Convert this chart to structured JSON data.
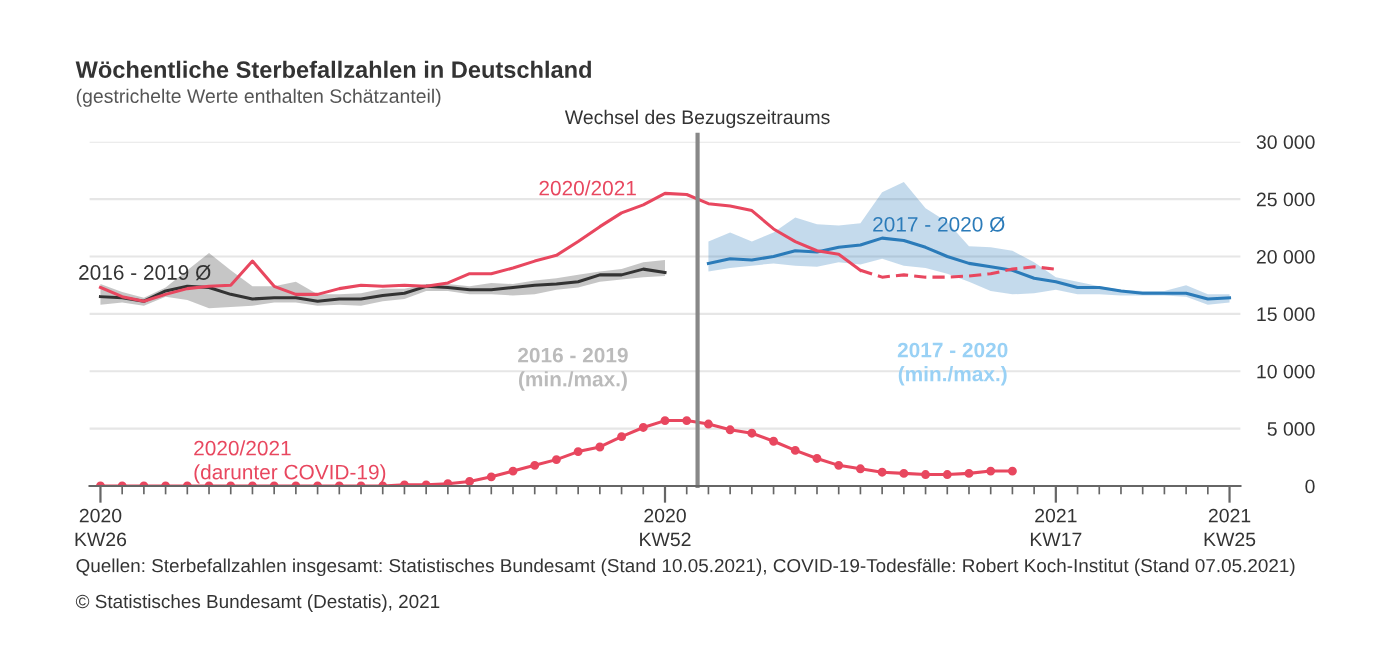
{
  "chart_data": {
    "type": "line",
    "title": "Wöchentliche Sterbefallzahlen in Deutschland",
    "subtitle": "(gestrichelte Werte enthalten Schätzanteil)",
    "categories": [
      "2020\nKW26",
      null,
      null,
      null,
      null,
      null,
      null,
      null,
      null,
      null,
      null,
      null,
      null,
      null,
      null,
      null,
      null,
      null,
      null,
      null,
      null,
      null,
      null,
      null,
      null,
      null,
      "2020\nKW52",
      null,
      null,
      null,
      null,
      null,
      null,
      null,
      null,
      null,
      null,
      null,
      null,
      null,
      null,
      null,
      null,
      null,
      "2021\nKW17",
      null,
      null,
      null,
      null,
      null,
      null,
      null,
      "2021\nKW25"
    ],
    "ylim": [
      0,
      30000
    ],
    "yticks": [
      {
        "value": 0,
        "label": "0"
      },
      {
        "value": 5000,
        "label": "5 000"
      },
      {
        "value": 10000,
        "label": "10 000"
      },
      {
        "value": 15000,
        "label": "15 000"
      },
      {
        "value": 20000,
        "label": "20 000"
      },
      {
        "value": 25000,
        "label": "25 000"
      },
      {
        "value": 30000,
        "label": "30 000"
      }
    ],
    "grid": "y",
    "series": [
      {
        "name": "2016 - 2019 Ø",
        "color": "#333333",
        "values": [
          16500,
          16400,
          16100,
          17000,
          17400,
          17300,
          16700,
          16300,
          16400,
          16400,
          16100,
          16300,
          16300,
          16600,
          16800,
          17400,
          17300,
          17100,
          17100,
          17300,
          17500,
          17600,
          17800,
          18400,
          18400,
          18900,
          18600,
          null,
          null,
          null,
          null,
          null,
          null,
          null,
          null,
          null,
          null,
          null,
          null,
          null,
          null,
          null,
          null,
          null,
          null,
          null,
          null,
          null,
          null,
          null,
          null,
          null,
          null
        ],
        "lower": [
          15800,
          16000,
          15700,
          16500,
          16200,
          15500,
          15600,
          15700,
          16000,
          16000,
          15700,
          15800,
          15700,
          16100,
          16300,
          17000,
          17000,
          16700,
          16700,
          16600,
          16700,
          17100,
          17300,
          17800,
          18000,
          18200,
          18300,
          null,
          null,
          null,
          null,
          null,
          null,
          null,
          null,
          null,
          null,
          null,
          null,
          null,
          null,
          null,
          null,
          null,
          null,
          null,
          null,
          null,
          null,
          null,
          null,
          null,
          null
        ],
        "upper": [
          17600,
          16900,
          16400,
          17300,
          18800,
          20300,
          18800,
          17400,
          17400,
          17800,
          16700,
          16700,
          16800,
          17200,
          17200,
          17600,
          17600,
          17400,
          17700,
          17600,
          17900,
          18100,
          18400,
          18700,
          18900,
          19500,
          19700,
          null,
          null,
          null,
          null,
          null,
          null,
          null,
          null,
          null,
          null,
          null,
          null,
          null,
          null,
          null,
          null,
          null,
          null,
          null,
          null,
          null,
          null,
          null,
          null,
          null,
          null
        ]
      },
      {
        "name": "2017 - 2020 Ø",
        "color": "#2b7bb9",
        "values": [
          null,
          null,
          null,
          null,
          null,
          null,
          null,
          null,
          null,
          null,
          null,
          null,
          null,
          null,
          null,
          null,
          null,
          null,
          null,
          null,
          null,
          null,
          null,
          null,
          null,
          null,
          null,
          null,
          19400,
          19800,
          19700,
          20000,
          20500,
          20400,
          20800,
          21000,
          21600,
          21400,
          20800,
          20000,
          19400,
          19100,
          18800,
          18100,
          17800,
          17300,
          17300,
          17000,
          16800,
          16800,
          16800,
          16300,
          16400
        ],
        "lower": [
          null,
          null,
          null,
          null,
          null,
          null,
          null,
          null,
          null,
          null,
          null,
          null,
          null,
          null,
          null,
          null,
          null,
          null,
          null,
          null,
          null,
          null,
          null,
          null,
          null,
          null,
          null,
          null,
          18700,
          19000,
          19200,
          19400,
          19200,
          19100,
          19500,
          19300,
          19800,
          19200,
          19000,
          18500,
          17800,
          17000,
          16700,
          16800,
          17100,
          16700,
          16700,
          16600,
          16600,
          16600,
          16500,
          15800,
          16000
        ],
        "upper": [
          null,
          null,
          null,
          null,
          null,
          null,
          null,
          null,
          null,
          null,
          null,
          null,
          null,
          null,
          null,
          null,
          null,
          null,
          null,
          null,
          null,
          null,
          null,
          null,
          null,
          null,
          null,
          null,
          21300,
          22100,
          21300,
          22100,
          23400,
          22800,
          22700,
          22900,
          25600,
          26500,
          24200,
          23000,
          20900,
          20800,
          20500,
          19500,
          18200,
          17800,
          17400,
          17100,
          17000,
          17000,
          17500,
          16700,
          16700
        ]
      },
      {
        "name": "2020/2021",
        "color": "#e8475f",
        "line_style": "solid",
        "values": [
          17300,
          16500,
          16100,
          16700,
          17200,
          17400,
          17500,
          19600,
          17400,
          16700,
          16700,
          17200,
          17500,
          17400,
          17500,
          17400,
          17700,
          18500,
          18500,
          19000,
          19600,
          20100,
          21300,
          22600,
          23800,
          24500,
          25500,
          25400,
          24600,
          24400,
          24000,
          22400,
          21300,
          20500,
          20200,
          18800,
          null,
          null,
          null,
          null,
          null,
          null,
          null,
          null,
          null,
          null,
          null,
          null,
          null,
          null,
          null,
          null,
          null
        ]
      },
      {
        "color": "#e8475f",
        "line_style": "dashed",
        "values": [
          null,
          null,
          null,
          null,
          null,
          null,
          null,
          null,
          null,
          null,
          null,
          null,
          null,
          null,
          null,
          null,
          null,
          null,
          null,
          null,
          null,
          null,
          null,
          null,
          null,
          null,
          null,
          null,
          null,
          null,
          null,
          null,
          null,
          null,
          null,
          18800,
          18200,
          18400,
          18200,
          18200,
          18300,
          18500,
          18900,
          19100,
          18900,
          null,
          null,
          null,
          null,
          null,
          null,
          null,
          null
        ]
      },
      {
        "name": "2020/2021\n(darunter COVID-19)",
        "color": "#e8475f",
        "marker": "circle",
        "values": [
          0,
          0,
          0,
          0,
          0,
          0,
          0,
          0,
          0,
          0,
          0,
          0,
          0,
          0,
          100,
          100,
          200,
          400,
          800,
          1300,
          1800,
          2300,
          3000,
          3400,
          4300,
          5100,
          5700,
          5700,
          5400,
          4900,
          4600,
          3900,
          3100,
          2400,
          1800,
          1500,
          1200,
          1100,
          1000,
          1000,
          1100,
          1300,
          1300,
          null,
          null,
          null,
          null,
          null,
          null,
          null,
          null,
          null,
          null
        ]
      }
    ],
    "annotations": [
      "Wechsel des Bezugszeitraums",
      "2016 - 2019\n(min./max.)",
      "2017 - 2020\n(min./max.)",
      "Quellen: Sterbefallzahlen insgesamt: Statistisches Bundesamt (Stand 10.05.2021), COVID-19-Todesfälle: Robert Koch-Institut (Stand 07.05.2021)",
      "© Statistisches Bundesamt (Destatis), 2021"
    ]
  }
}
